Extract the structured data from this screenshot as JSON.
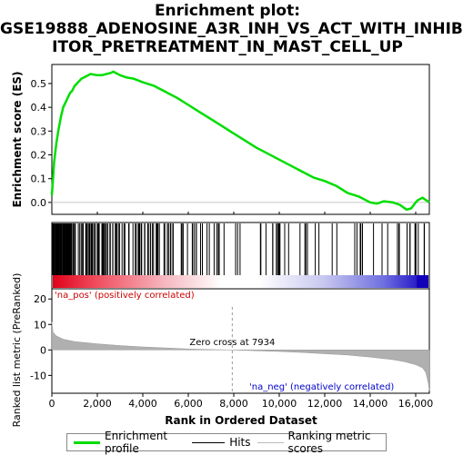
{
  "title_lines": [
    "Enrichment plot:",
    "GSE19888_ADENOSINE_A3R_INH_VS_ACT_WITH_INHIB",
    "ITOR_PRETREATMENT_IN_MAST_CELL_UP"
  ],
  "colors": {
    "es_line": "#00dd00",
    "hits": "#000000",
    "metric_fill": "#b0b0b0",
    "pos_label": "#cc0000",
    "neg_label": "#0000cc",
    "zero_line": "#c8c8c8"
  },
  "legend": {
    "enrichment_profile": "Enrichment profile",
    "hits": "Hits",
    "ranking_metric": "Ranking metric scores"
  },
  "chart_data": {
    "type": "line",
    "n_genes": 16600,
    "x_ticks": [
      0,
      2000,
      4000,
      6000,
      8000,
      10000,
      12000,
      14000,
      16000
    ],
    "x_tick_labels": [
      "0",
      "2,000",
      "4,000",
      "6,000",
      "8,000",
      "10,000",
      "12,000",
      "14,000",
      "16,000"
    ],
    "xlabel": "Rank in Ordered Dataset",
    "es_panel": {
      "ylabel": "Enrichment score (ES)",
      "ylim": [
        -0.05,
        0.58
      ],
      "y_ticks": [
        0.0,
        0.1,
        0.2,
        0.3,
        0.4,
        0.5
      ],
      "y_tick_labels": [
        "0.0",
        "0.1",
        "0.2",
        "0.3",
        "0.4",
        "0.5"
      ],
      "x": [
        0,
        50,
        100,
        200,
        300,
        400,
        500,
        600,
        700,
        800,
        900,
        1000,
        1100,
        1200,
        1300,
        1500,
        1700,
        2000,
        2200,
        2400,
        2600,
        2700,
        3000,
        3300,
        3600,
        4000,
        4500,
        5000,
        5500,
        6000,
        6500,
        7000,
        7500,
        8000,
        8500,
        9000,
        9500,
        10000,
        10500,
        11000,
        11500,
        12000,
        12500,
        13000,
        13500,
        13800,
        14000,
        14300,
        14600,
        15000,
        15300,
        15600,
        15800,
        16000,
        16100,
        16300,
        16600
      ],
      "y": [
        0.03,
        0.1,
        0.17,
        0.25,
        0.31,
        0.36,
        0.4,
        0.42,
        0.44,
        0.46,
        0.47,
        0.49,
        0.5,
        0.51,
        0.52,
        0.53,
        0.54,
        0.535,
        0.535,
        0.54,
        0.545,
        0.55,
        0.535,
        0.525,
        0.52,
        0.505,
        0.49,
        0.465,
        0.44,
        0.41,
        0.38,
        0.35,
        0.32,
        0.29,
        0.26,
        0.23,
        0.205,
        0.18,
        0.155,
        0.13,
        0.105,
        0.09,
        0.07,
        0.04,
        0.025,
        0.01,
        0.0,
        -0.005,
        0.005,
        0.0,
        -0.01,
        -0.03,
        -0.025,
        0.0,
        0.01,
        0.02,
        0.0
      ]
    },
    "hits_panel": {
      "hit_clusters": [
        [
          20,
          900,
          70
        ],
        [
          900,
          2800,
          55
        ],
        [
          2800,
          5200,
          35
        ],
        [
          5200,
          8300,
          28
        ],
        [
          8300,
          12200,
          18
        ],
        [
          12200,
          14800,
          10
        ],
        [
          14800,
          16500,
          12
        ]
      ]
    },
    "metric_panel": {
      "ylabel": "Ranked list metric (PreRanked)",
      "ylim": [
        -17,
        24
      ],
      "y_ticks": [
        -10,
        0,
        10,
        20
      ],
      "y_tick_labels": [
        "-10",
        "0",
        "10",
        "20"
      ],
      "x": [
        0,
        50,
        200,
        500,
        1000,
        2000,
        3000,
        4000,
        5000,
        6000,
        7000,
        7934,
        9000,
        10000,
        11000,
        12000,
        13000,
        14000,
        15000,
        15500,
        16000,
        16300,
        16450,
        16550,
        16600
      ],
      "y": [
        11,
        7,
        5.5,
        4.2,
        3.3,
        2.4,
        1.7,
        1.2,
        0.8,
        0.4,
        0.15,
        0,
        -0.3,
        -0.6,
        -1.0,
        -1.5,
        -2.0,
        -2.8,
        -3.8,
        -4.6,
        -5.8,
        -7,
        -9,
        -13,
        -16
      ],
      "zero_cross_label": "Zero cross at 7934",
      "zero_cross": 7934,
      "pos_label": "'na_pos' (positively correlated)",
      "neg_label": "'na_neg' (negatively correlated)"
    }
  }
}
